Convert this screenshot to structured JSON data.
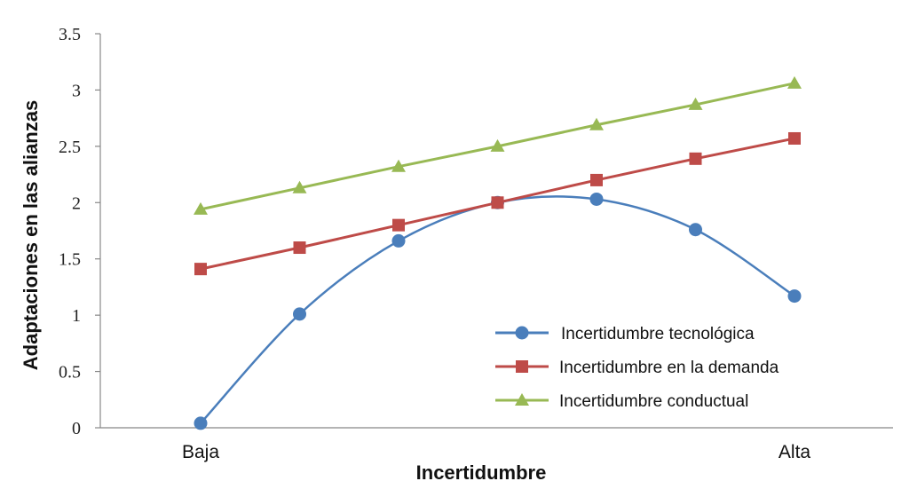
{
  "chart_data": {
    "type": "line",
    "xlabel": "Incertidumbre",
    "ylabel": "Adaptaciones en las alianzas",
    "ylim": [
      0,
      3.5
    ],
    "yticks": [
      "0",
      "0.5",
      "1",
      "1.5",
      "2",
      "2.5",
      "3",
      "3.5"
    ],
    "x_tick_labels": [
      {
        "label": "Baja",
        "index": 0
      },
      {
        "label": "Alta",
        "index": 6
      }
    ],
    "n_points": 7,
    "grid": false,
    "legend_position": "bottom-right",
    "series": [
      {
        "name": "Incertidumbre tecnológica",
        "color": "#4a7ebb",
        "marker": "circle",
        "smooth": true,
        "values": [
          0.04,
          1.01,
          1.66,
          2.0,
          2.03,
          1.76,
          1.17
        ]
      },
      {
        "name": "Incertidumbre en la demanda",
        "color": "#be4b48",
        "marker": "square",
        "smooth": false,
        "values": [
          1.41,
          1.6,
          1.8,
          2.0,
          2.2,
          2.39,
          2.57
        ]
      },
      {
        "name": "Incertidumbre conductual",
        "color": "#98b954",
        "marker": "triangle",
        "smooth": false,
        "values": [
          1.94,
          2.13,
          2.32,
          2.5,
          2.69,
          2.87,
          3.06
        ]
      }
    ]
  }
}
